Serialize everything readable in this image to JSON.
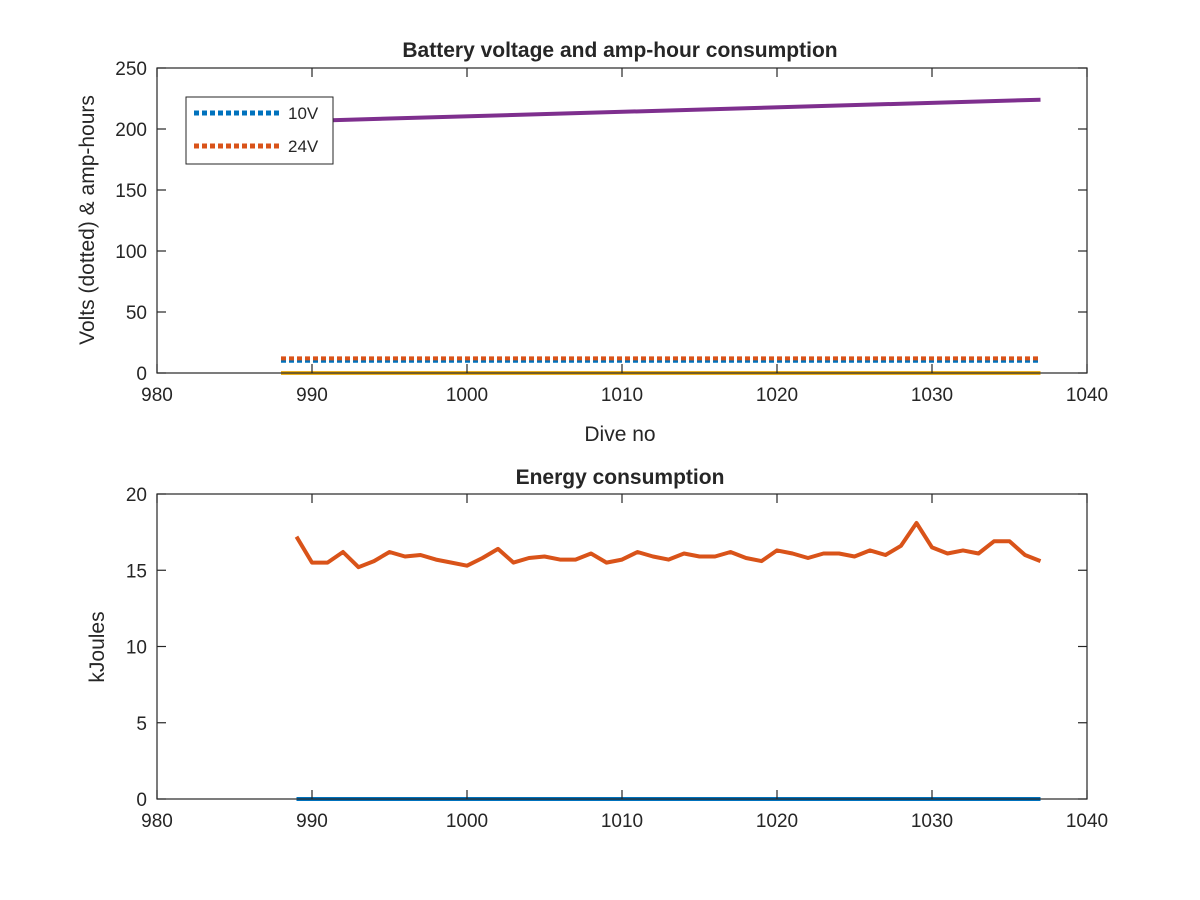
{
  "colors": {
    "blue": "#0072bd",
    "orange": "#d95319",
    "yellow": "#edb120",
    "purple": "#7e2f8e",
    "axis": "#262626"
  },
  "chart_data": [
    {
      "type": "line",
      "title": "Battery voltage and amp-hour consumption",
      "xlabel": "Dive no",
      "ylabel": "Volts (dotted) & amp-hours",
      "xlim": [
        980,
        1040
      ],
      "ylim": [
        0,
        250
      ],
      "xticks": [
        "980",
        "990",
        "1000",
        "1010",
        "1020",
        "1030",
        "1040"
      ],
      "yticks": [
        "0",
        "50",
        "100",
        "150",
        "200",
        "250"
      ],
      "grid": false,
      "legend": {
        "placement": "top-left",
        "entries": [
          "10V",
          "24V"
        ]
      },
      "series": [
        {
          "name": "10V",
          "style": "dotted",
          "color": "blue",
          "x": [
            988,
            1037
          ],
          "y": [
            10,
            10
          ]
        },
        {
          "name": "24V",
          "style": "dotted",
          "color": "orange",
          "x": [
            988,
            1037
          ],
          "y": [
            12,
            12
          ]
        },
        {
          "style": "solid",
          "color": "yellow",
          "x": [
            988,
            1037
          ],
          "y": [
            0,
            0
          ]
        },
        {
          "style": "solid",
          "color": "purple",
          "x": [
            988,
            1037
          ],
          "y": [
            206,
            224
          ]
        }
      ]
    },
    {
      "type": "line",
      "title": "Energy consumption",
      "xlabel": "",
      "ylabel": "kJoules",
      "xlim": [
        980,
        1040
      ],
      "ylim": [
        0,
        20
      ],
      "xticks": [
        "980",
        "990",
        "1000",
        "1010",
        "1020",
        "1030",
        "1040"
      ],
      "yticks": [
        "0",
        "5",
        "10",
        "15",
        "20"
      ],
      "grid": false,
      "series": [
        {
          "style": "solid",
          "color": "blue",
          "x": [
            989,
            1037
          ],
          "y": [
            0,
            0
          ]
        },
        {
          "style": "solid",
          "color": "orange",
          "x": [
            989,
            990,
            991,
            992,
            993,
            994,
            995,
            996,
            997,
            998,
            999,
            1000,
            1001,
            1002,
            1003,
            1004,
            1005,
            1006,
            1007,
            1008,
            1009,
            1010,
            1011,
            1012,
            1013,
            1014,
            1015,
            1016,
            1017,
            1018,
            1019,
            1020,
            1021,
            1022,
            1023,
            1024,
            1025,
            1026,
            1027,
            1028,
            1029,
            1030,
            1031,
            1032,
            1033,
            1034,
            1035,
            1036,
            1037
          ],
          "y": [
            17.2,
            15.5,
            15.5,
            16.2,
            15.2,
            15.6,
            16.2,
            15.9,
            16.0,
            15.7,
            15.5,
            15.3,
            15.8,
            16.4,
            15.5,
            15.8,
            15.9,
            15.7,
            15.7,
            16.1,
            15.5,
            15.7,
            16.2,
            15.9,
            15.7,
            16.1,
            15.9,
            15.9,
            16.2,
            15.8,
            15.6,
            16.3,
            16.1,
            15.8,
            16.1,
            16.1,
            15.9,
            16.3,
            16.0,
            16.6,
            18.1,
            16.5,
            16.1,
            16.3,
            16.1,
            16.9,
            16.9,
            16.0,
            15.6
          ]
        }
      ]
    }
  ]
}
